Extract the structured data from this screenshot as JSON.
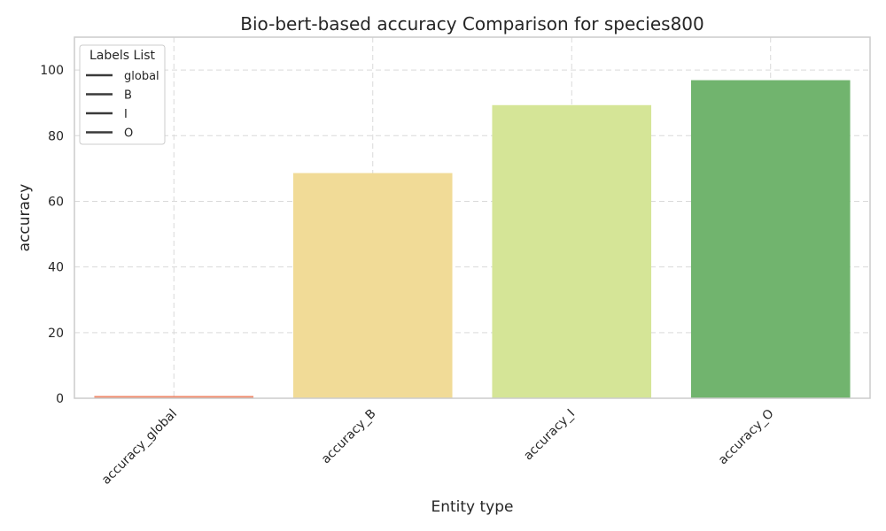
{
  "chart_data": {
    "type": "bar",
    "title": "Bio-bert-based accuracy Comparison for species800",
    "xlabel": "Entity type",
    "ylabel": "accuracy",
    "categories": [
      "accuracy_global",
      "accuracy_B",
      "accuracy_I",
      "accuracy_O"
    ],
    "values": [
      0.7,
      68.6,
      89.3,
      96.9
    ],
    "colors": [
      "#f08a6c",
      "#f1db97",
      "#d5e597",
      "#71b46e"
    ],
    "ylim": [
      0,
      110
    ],
    "yticks": [
      0,
      20,
      40,
      60,
      80,
      100
    ],
    "grid": true,
    "legend": {
      "title": "Labels List",
      "placement": "top-left",
      "entries": [
        "global",
        "B",
        "I",
        "O"
      ]
    }
  }
}
